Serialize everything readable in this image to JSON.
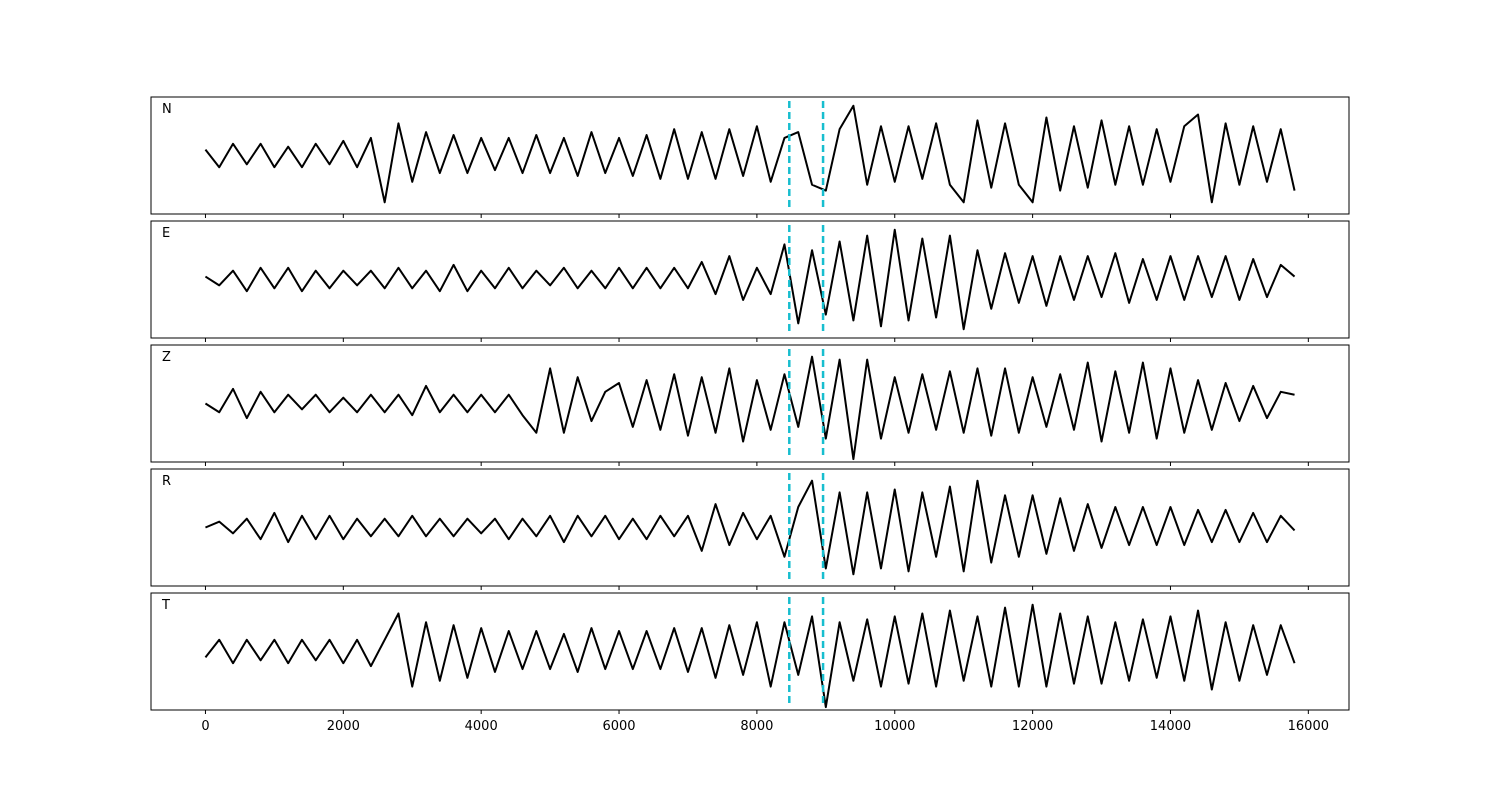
{
  "chart_data": {
    "type": "line",
    "x": [
      0,
      200,
      400,
      600,
      800,
      1000,
      1200,
      1400,
      1600,
      1800,
      2000,
      2200,
      2400,
      2600,
      2800,
      3000,
      3200,
      3400,
      3600,
      3800,
      4000,
      4200,
      4400,
      4600,
      4800,
      5000,
      5200,
      5400,
      5600,
      5800,
      6000,
      6200,
      6400,
      6600,
      6800,
      7000,
      7200,
      7400,
      7600,
      7800,
      8000,
      8200,
      8400,
      8600,
      8800,
      9000,
      9200,
      9400,
      9600,
      9800,
      10000,
      10200,
      10400,
      10600,
      10800,
      11000,
      11200,
      11400,
      11600,
      11800,
      12000,
      12200,
      12400,
      12600,
      12800,
      13000,
      13200,
      13400,
      13600,
      13800,
      14000,
      14200,
      14400,
      14600,
      14800,
      15000,
      15200,
      15400,
      15600,
      15800
    ],
    "xlim": [
      -790,
      16590
    ],
    "xticks": [
      0,
      2000,
      4000,
      6000,
      8000,
      10000,
      12000,
      14000,
      16000
    ],
    "ylim": [
      -1,
      1
    ],
    "color": "#000000",
    "vlines": [
      8470,
      8960
    ],
    "vline_color": "#17becf",
    "panels": [
      {
        "label": "N",
        "values": [
          0.1,
          -0.2,
          0.2,
          -0.15,
          0.2,
          -0.2,
          0.15,
          -0.2,
          0.2,
          -0.15,
          0.25,
          -0.2,
          0.3,
          -0.8,
          0.55,
          -0.45,
          0.4,
          -0.3,
          0.35,
          -0.3,
          0.3,
          -0.25,
          0.3,
          -0.3,
          0.35,
          -0.3,
          0.3,
          -0.35,
          0.4,
          -0.3,
          0.3,
          -0.35,
          0.35,
          -0.4,
          0.45,
          -0.4,
          0.4,
          -0.4,
          0.45,
          -0.35,
          0.5,
          -0.45,
          0.3,
          0.4,
          -0.5,
          -0.6,
          0.45,
          0.85,
          -0.5,
          0.5,
          -0.45,
          0.5,
          -0.4,
          0.55,
          -0.5,
          -0.8,
          0.6,
          -0.55,
          0.55,
          -0.5,
          -0.8,
          0.65,
          -0.6,
          0.5,
          -0.55,
          0.6,
          -0.5,
          0.5,
          -0.5,
          0.45,
          -0.45,
          0.5,
          0.7,
          -0.8,
          0.55,
          -0.5,
          0.5,
          -0.45,
          0.45,
          -0.6
        ]
      },
      {
        "label": "E",
        "values": [
          0.05,
          -0.1,
          0.15,
          -0.2,
          0.2,
          -0.15,
          0.2,
          -0.2,
          0.15,
          -0.15,
          0.15,
          -0.1,
          0.15,
          -0.15,
          0.2,
          -0.15,
          0.15,
          -0.2,
          0.25,
          -0.2,
          0.15,
          -0.15,
          0.2,
          -0.15,
          0.15,
          -0.1,
          0.2,
          -0.15,
          0.15,
          -0.15,
          0.2,
          -0.15,
          0.2,
          -0.15,
          0.2,
          -0.15,
          0.3,
          -0.25,
          0.4,
          -0.35,
          0.2,
          -0.25,
          0.6,
          -0.75,
          0.5,
          -0.6,
          0.65,
          -0.7,
          0.75,
          -0.8,
          0.85,
          -0.7,
          0.7,
          -0.65,
          0.75,
          -0.85,
          0.5,
          -0.5,
          0.45,
          -0.4,
          0.4,
          -0.45,
          0.4,
          -0.35,
          0.4,
          -0.3,
          0.45,
          -0.4,
          0.35,
          -0.35,
          0.4,
          -0.35,
          0.4,
          -0.3,
          0.4,
          -0.35,
          0.35,
          -0.3,
          0.25,
          0.05
        ]
      },
      {
        "label": "Z",
        "values": [
          0.0,
          -0.15,
          0.25,
          -0.25,
          0.2,
          -0.15,
          0.15,
          -0.1,
          0.15,
          -0.15,
          0.1,
          -0.15,
          0.15,
          -0.15,
          0.15,
          -0.2,
          0.3,
          -0.15,
          0.15,
          -0.15,
          0.15,
          -0.15,
          0.15,
          -0.2,
          -0.5,
          0.6,
          -0.5,
          0.45,
          -0.3,
          0.2,
          0.35,
          -0.4,
          0.4,
          -0.45,
          0.5,
          -0.55,
          0.45,
          -0.5,
          0.6,
          -0.65,
          0.4,
          -0.45,
          0.5,
          -0.4,
          0.8,
          -0.6,
          0.75,
          -0.95,
          0.75,
          -0.6,
          0.45,
          -0.5,
          0.5,
          -0.45,
          0.55,
          -0.5,
          0.6,
          -0.55,
          0.6,
          -0.5,
          0.45,
          -0.4,
          0.5,
          -0.45,
          0.7,
          -0.65,
          0.55,
          -0.5,
          0.7,
          -0.6,
          0.6,
          -0.5,
          0.4,
          -0.45,
          0.35,
          -0.3,
          0.3,
          -0.25,
          0.2,
          0.15
        ]
      },
      {
        "label": "R",
        "values": [
          0.0,
          0.1,
          -0.1,
          0.15,
          -0.2,
          0.25,
          -0.25,
          0.2,
          -0.2,
          0.2,
          -0.2,
          0.15,
          -0.15,
          0.15,
          -0.15,
          0.2,
          -0.15,
          0.15,
          -0.15,
          0.15,
          -0.1,
          0.15,
          -0.2,
          0.15,
          -0.15,
          0.2,
          -0.25,
          0.2,
          -0.15,
          0.2,
          -0.2,
          0.15,
          -0.2,
          0.2,
          -0.15,
          0.2,
          -0.4,
          0.4,
          -0.3,
          0.25,
          -0.2,
          0.2,
          -0.5,
          0.35,
          0.8,
          -0.7,
          0.6,
          -0.8,
          0.6,
          -0.7,
          0.65,
          -0.75,
          0.6,
          -0.5,
          0.7,
          -0.75,
          0.8,
          -0.6,
          0.55,
          -0.5,
          0.55,
          -0.45,
          0.5,
          -0.4,
          0.4,
          -0.35,
          0.35,
          -0.3,
          0.35,
          -0.3,
          0.35,
          -0.3,
          0.3,
          -0.25,
          0.3,
          -0.25,
          0.25,
          -0.25,
          0.2,
          -0.05
        ]
      },
      {
        "label": "T",
        "values": [
          -0.1,
          0.2,
          -0.2,
          0.2,
          -0.15,
          0.2,
          -0.2,
          0.2,
          -0.15,
          0.2,
          -0.2,
          0.2,
          -0.25,
          0.2,
          0.65,
          -0.6,
          0.5,
          -0.5,
          0.45,
          -0.45,
          0.4,
          -0.35,
          0.35,
          -0.3,
          0.35,
          -0.3,
          0.3,
          -0.35,
          0.4,
          -0.3,
          0.35,
          -0.3,
          0.35,
          -0.3,
          0.4,
          -0.35,
          0.4,
          -0.45,
          0.45,
          -0.4,
          0.5,
          -0.6,
          0.5,
          -0.4,
          0.6,
          -0.95,
          0.5,
          -0.5,
          0.55,
          -0.6,
          0.6,
          -0.55,
          0.65,
          -0.6,
          0.7,
          -0.5,
          0.6,
          -0.6,
          0.75,
          -0.6,
          0.8,
          -0.6,
          0.65,
          -0.55,
          0.6,
          -0.55,
          0.5,
          -0.5,
          0.55,
          -0.45,
          0.6,
          -0.5,
          0.7,
          -0.65,
          0.5,
          -0.5,
          0.45,
          -0.4,
          0.45,
          -0.2
        ]
      }
    ]
  }
}
